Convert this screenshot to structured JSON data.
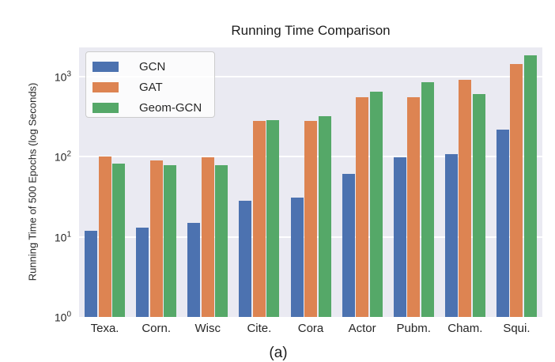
{
  "figure": {
    "caption": "(a)"
  },
  "chart_data": {
    "type": "bar",
    "title": "Running Time Comparison",
    "xlabel": "",
    "ylabel": "Running Time of 500 Epochs (log Seconds)",
    "yscale": "log",
    "ylim": [
      1,
      2300
    ],
    "ytick_labels": [
      "10^0",
      "10^1",
      "10^2",
      "10^3"
    ],
    "grid": "horizontal white major gridlines",
    "plot_background": "#eaeaf2",
    "legend_position": "upper-left",
    "categories": [
      "Texa.",
      "Corn.",
      "Wisc",
      "Cite.",
      "Cora",
      "Actor",
      "Pubm.",
      "Cham.",
      "Squi."
    ],
    "series": [
      {
        "name": "GCN",
        "color": "#4c72b0",
        "values": [
          12,
          13,
          15,
          28,
          31,
          61,
          99,
          108,
          215
        ]
      },
      {
        "name": "GAT",
        "color": "#dd8452",
        "values": [
          100,
          89,
          98,
          279,
          280,
          550,
          555,
          900,
          1430
        ]
      },
      {
        "name": "Geom-GCN",
        "color": "#55a868",
        "values": [
          81,
          79,
          78,
          287,
          318,
          640,
          845,
          605,
          1845
        ]
      }
    ]
  }
}
